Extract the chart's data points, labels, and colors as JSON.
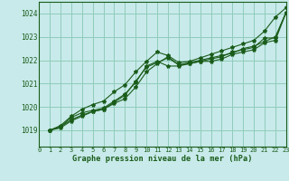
{
  "title": "Graphe pression niveau de la mer (hPa)",
  "bg_color": "#c8eaea",
  "grid_color": "#90ccbb",
  "line_color": "#1a5c1a",
  "xlim": [
    0,
    23
  ],
  "ylim": [
    1018.3,
    1024.5
  ],
  "yticks": [
    1019,
    1020,
    1021,
    1022,
    1023,
    1024
  ],
  "xticks": [
    0,
    1,
    2,
    3,
    4,
    5,
    6,
    7,
    8,
    9,
    10,
    11,
    12,
    13,
    14,
    15,
    16,
    17,
    18,
    19,
    20,
    21,
    22,
    23
  ],
  "line1_x": [
    1,
    2,
    3,
    4,
    5,
    6,
    7,
    8,
    9,
    10,
    11,
    12,
    13,
    14,
    15,
    16,
    17,
    18,
    19,
    20,
    21,
    22,
    23
  ],
  "line1_y": [
    1019.0,
    1019.15,
    1019.55,
    1019.75,
    1019.85,
    1019.95,
    1020.25,
    1020.55,
    1021.05,
    1021.75,
    1021.95,
    1021.75,
    1021.75,
    1021.85,
    1021.95,
    1021.95,
    1022.05,
    1022.25,
    1022.35,
    1022.45,
    1022.75,
    1022.85,
    1024.05
  ],
  "line2_x": [
    1,
    2,
    3,
    4,
    5,
    6,
    7,
    8,
    9,
    10,
    11,
    12,
    13,
    14,
    15,
    16,
    17,
    18,
    19,
    20,
    21,
    22,
    23
  ],
  "line2_y": [
    1019.0,
    1019.15,
    1019.45,
    1019.65,
    1019.8,
    1019.9,
    1020.15,
    1020.35,
    1020.85,
    1021.5,
    1021.85,
    1022.15,
    1021.8,
    1021.85,
    1021.95,
    1022.05,
    1022.15,
    1022.35,
    1022.45,
    1022.55,
    1022.95,
    1022.95,
    1024.05
  ],
  "line3_x": [
    1,
    2,
    3,
    4,
    5,
    6,
    7,
    8,
    9,
    10,
    11,
    12,
    13,
    14,
    15,
    16,
    17,
    18,
    19,
    20,
    21,
    22,
    23
  ],
  "line3_y": [
    1019.0,
    1019.1,
    1019.4,
    1019.6,
    1019.8,
    1019.9,
    1020.2,
    1020.5,
    1021.1,
    1021.7,
    1021.9,
    1022.1,
    1021.8,
    1021.9,
    1022.0,
    1022.1,
    1022.2,
    1022.3,
    1022.5,
    1022.6,
    1022.8,
    1023.0,
    1024.05
  ],
  "line4_x": [
    1,
    2,
    3,
    4,
    5,
    6,
    7,
    8,
    9,
    10,
    11,
    12,
    13,
    14,
    15,
    16,
    17,
    18,
    19,
    20,
    21,
    22,
    23
  ],
  "line4_y": [
    1019.0,
    1019.2,
    1019.6,
    1019.9,
    1020.1,
    1020.25,
    1020.65,
    1020.95,
    1021.5,
    1021.95,
    1022.35,
    1022.2,
    1021.9,
    1021.95,
    1022.1,
    1022.25,
    1022.4,
    1022.55,
    1022.7,
    1022.85,
    1023.25,
    1023.85,
    1024.25
  ]
}
